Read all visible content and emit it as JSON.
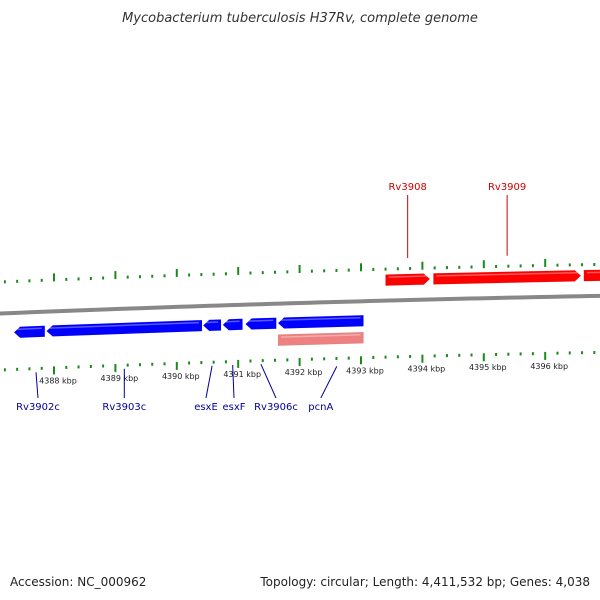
{
  "title": "Mycobacterium tuberculosis H37Rv, complete genome",
  "footer": {
    "accession": "Accession: NC_000962",
    "summary": "Topology: circular; Length: 4,411,532 bp; Genes: 4,038"
  },
  "colors": {
    "forward": "#ff0000",
    "reverse": "#0000ff",
    "rna": "#ee8080",
    "forward_label": "#cc0000",
    "reverse_label": "#000099",
    "ticks": "#1b8a1b",
    "backbone": "#888888"
  },
  "tick_labels": [
    "4388 kbp",
    "4389 kbp",
    "4390 kbp",
    "4391 kbp",
    "4392 kbp",
    "4393 kbp",
    "4394 kbp",
    "4395 kbp",
    "4396 kbp"
  ],
  "genes": [
    {
      "name": "Rv3902c",
      "strand": "reverse",
      "start_kbp": 4387.35,
      "end_kbp": 4387.85,
      "labeled": true
    },
    {
      "name": "Rv3903c",
      "strand": "reverse",
      "start_kbp": 4387.88,
      "end_kbp": 4390.41,
      "labeled": true
    },
    {
      "name": "esxE",
      "strand": "reverse",
      "start_kbp": 4390.43,
      "end_kbp": 4390.72,
      "labeled": true
    },
    {
      "name": "esxF",
      "strand": "reverse",
      "start_kbp": 4390.75,
      "end_kbp": 4391.07,
      "labeled": true
    },
    {
      "name": "Rv3906c",
      "strand": "reverse",
      "start_kbp": 4391.12,
      "end_kbp": 4391.62,
      "labeled": true
    },
    {
      "name": "",
      "strand": "reverse",
      "start_kbp": 4391.65,
      "end_kbp": 4393.04,
      "labeled": false
    },
    {
      "name": "pcnA",
      "strand": "rna",
      "start_kbp": 4391.65,
      "end_kbp": 4393.04,
      "labeled": true
    },
    {
      "name": "Rv3908",
      "strand": "forward",
      "start_kbp": 4393.4,
      "end_kbp": 4394.12,
      "labeled": true
    },
    {
      "name": "Rv3909",
      "strand": "forward",
      "start_kbp": 4394.18,
      "end_kbp": 4396.58,
      "labeled": true
    },
    {
      "name": "",
      "strand": "forward",
      "start_kbp": 4396.63,
      "end_kbp": 4397.4,
      "labeled": false
    }
  ]
}
